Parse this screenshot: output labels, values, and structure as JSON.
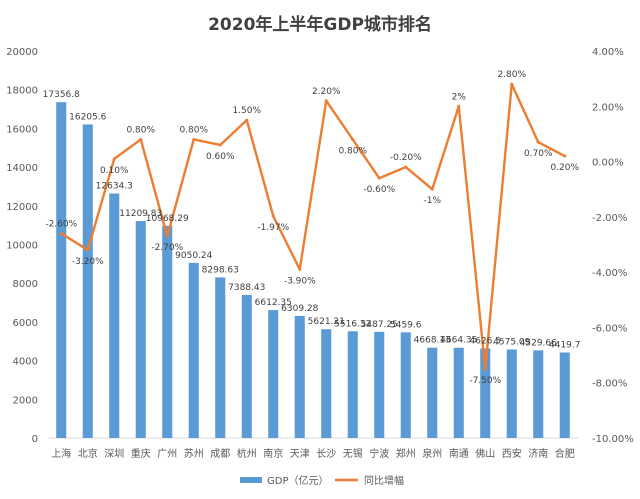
{
  "chart_data": {
    "type": "bar+line",
    "title": "2020年上半年GDP城市排名",
    "categories": [
      "上海",
      "北京",
      "深圳",
      "重庆",
      "广州",
      "苏州",
      "成都",
      "杭州",
      "南京",
      "天津",
      "长沙",
      "无锡",
      "宁波",
      "郑州",
      "泉州",
      "南通",
      "佛山",
      "西安",
      "济南",
      "合肥"
    ],
    "series": [
      {
        "name": "GDP（亿元）",
        "type": "bar",
        "axis": "left",
        "color": "#5B9BD5",
        "values": [
          17356.8,
          16205.6,
          12634.3,
          11209.83,
          10968.29,
          9050.24,
          8298.63,
          7388.43,
          6612.35,
          6309.28,
          5621.21,
          5516.32,
          5487.25,
          5459.6,
          4668.13,
          4664.35,
          4626.5,
          4575.09,
          4529.66,
          4419.7
        ],
        "labels": [
          "17356.8",
          "16205.6",
          "12634.3",
          "11209.83",
          "10968.29",
          "9050.24",
          "8298.63",
          "7388.43",
          "6612.35",
          "6309.28",
          "5621.21",
          "5516.32",
          "5487.25",
          "5459.6",
          "4668.13",
          "4664.35",
          "4626.5",
          "4575.09",
          "4529.66",
          "4419.7"
        ]
      },
      {
        "name": "同比增幅",
        "type": "line",
        "axis": "right",
        "color": "#ED7D31",
        "values": [
          -2.6,
          -3.2,
          0.1,
          0.8,
          -2.7,
          0.8,
          0.6,
          1.5,
          -1.97,
          -3.9,
          2.2,
          0.8,
          -0.6,
          -0.2,
          -1.0,
          2.0,
          -7.5,
          2.8,
          0.7,
          0.2
        ],
        "labels": [
          "-2.60%",
          "-3.20%",
          "0.10%",
          "0.80%",
          "-2.70%",
          "0.80%",
          "0.60%",
          "1.50%",
          "-1.97%",
          "-3.90%",
          "2.20%",
          "0.80%",
          "-0.60%",
          "-0.20%",
          "-1%",
          "2%",
          "-7.50%",
          "2.80%",
          "0.70%",
          "0.20%"
        ]
      }
    ],
    "y_left": {
      "min": 0,
      "max": 20000,
      "ticks": [
        "0",
        "2000",
        "4000",
        "6000",
        "8000",
        "10000",
        "12000",
        "14000",
        "16000",
        "18000",
        "20000"
      ]
    },
    "y_right": {
      "min": -10,
      "max": 4,
      "ticks": [
        "-10.00%",
        "-8.00%",
        "-6.00%",
        "-4.00%",
        "-2.00%",
        "0.00%",
        "2.00%",
        "4.00%"
      ]
    },
    "legend_position": "bottom",
    "grid": false
  }
}
